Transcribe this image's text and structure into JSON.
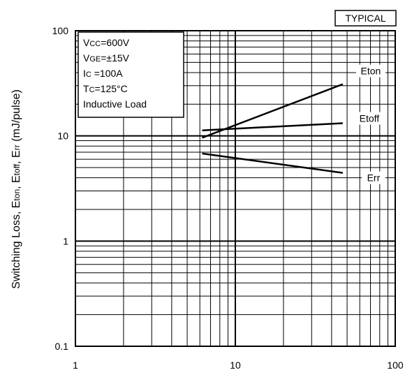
{
  "badge": "TYPICAL",
  "conditions": [
    {
      "main": "V",
      "sub": "CC",
      "rest": "=600V"
    },
    {
      "main": "V",
      "sub": "GE",
      "rest": "=±15V"
    },
    {
      "main": "I",
      "sub": "C",
      "rest": " =100A"
    },
    {
      "main": "T",
      "sub": "C",
      "rest": "=125°C"
    },
    {
      "main": "Inductive Load",
      "sub": "",
      "rest": ""
    }
  ],
  "ylabel_parts": [
    {
      "t": "Switching Loss, E",
      "sub": false
    },
    {
      "t": "ton",
      "sub": true
    },
    {
      "t": ", E",
      "sub": false
    },
    {
      "t": "toff",
      "sub": true
    },
    {
      "t": ", E",
      "sub": false
    },
    {
      "t": "rr",
      "sub": true
    },
    {
      "t": " (mJ/pulse)",
      "sub": false
    }
  ],
  "chart_data": {
    "type": "line",
    "title": "",
    "xlabel": "",
    "ylabel": "Switching Loss, Eton, Etoff, Err (mJ/pulse)",
    "xscale": "log",
    "yscale": "log",
    "xlim": [
      1,
      100
    ],
    "ylim": [
      0.1,
      100
    ],
    "x_ticks": [
      "1",
      "10",
      "100"
    ],
    "y_ticks": [
      "0.1",
      "1",
      "10",
      "100"
    ],
    "grid": true,
    "series": [
      {
        "name": "Eton",
        "x": [
          6.2,
          47
        ],
        "y": [
          9.6,
          31
        ]
      },
      {
        "name": "Etoff",
        "x": [
          6.2,
          47
        ],
        "y": [
          11.3,
          13.2
        ]
      },
      {
        "name": "Err",
        "x": [
          6.2,
          47
        ],
        "y": [
          6.8,
          4.45
        ]
      }
    ]
  }
}
